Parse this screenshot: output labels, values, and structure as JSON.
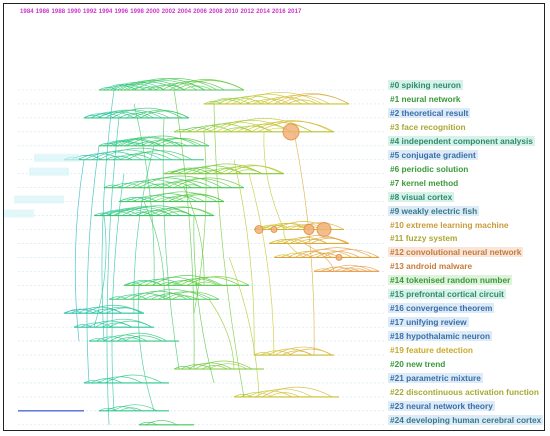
{
  "years": [
    "1984",
    "1986",
    "1988",
    "1990",
    "1992",
    "1994",
    "1996",
    "1998",
    "2000",
    "2002",
    "2004",
    "2006",
    "2008",
    "2010",
    "2012",
    "2014",
    "2016",
    "2017"
  ],
  "clusters": [
    {
      "label": "#0 spiking neuron",
      "color": "#2e8b6a",
      "bg": "#d7f2ea"
    },
    {
      "label": "#1 neural network",
      "color": "#3a9a3a",
      "bg": "#ffffff"
    },
    {
      "label": "#2 theoretical result",
      "color": "#3a6ea8",
      "bg": "#dcebf7"
    },
    {
      "label": "#3 face recognition",
      "color": "#a8a832",
      "bg": "#ffffff"
    },
    {
      "label": "#4 independent component analysis",
      "color": "#2e8b6a",
      "bg": "#d7f2ea"
    },
    {
      "label": "#5 conjugate gradient",
      "color": "#3a6ea8",
      "bg": "#dcebf7"
    },
    {
      "label": "#6 periodic solution",
      "color": "#3a9a3a",
      "bg": "#ffffff"
    },
    {
      "label": "#7 kernel method",
      "color": "#3a9a3a",
      "bg": "#ffffff"
    },
    {
      "label": "#8 visual cortex",
      "color": "#2e8b6a",
      "bg": "#d7f2ea"
    },
    {
      "label": "#9 weakly electric fish",
      "color": "#3a7a8a",
      "bg": "#dcebf7"
    },
    {
      "label": "#10 extreme learning machine",
      "color": "#c89a3a",
      "bg": "#ffffff"
    },
    {
      "label": "#11 fuzzy system",
      "color": "#a8a832",
      "bg": "#ffffff"
    },
    {
      "label": "#12 convolutional neural network",
      "color": "#c87a3a",
      "bg": "#f7e6d9"
    },
    {
      "label": "#13 android malware",
      "color": "#c87a3a",
      "bg": "#ffffff"
    },
    {
      "label": "#14 tokenised random number",
      "color": "#3a9a3a",
      "bg": "#dff2dc"
    },
    {
      "label": "#15 prefrontal cortical circuit",
      "color": "#2e8b6a",
      "bg": "#d7f2ea"
    },
    {
      "label": "#16 convergence theorem",
      "color": "#3a6ea8",
      "bg": "#dcebf7"
    },
    {
      "label": "#17 unifying review",
      "color": "#3a6ea8",
      "bg": "#dcebf7"
    },
    {
      "label": "#18 hypothalamic neuron",
      "color": "#3a6ea8",
      "bg": "#dcebf7"
    },
    {
      "label": "#19 feature detection",
      "color": "#c8aa2a",
      "bg": "#ffffff"
    },
    {
      "label": "#20 new trend",
      "color": "#3a9a3a",
      "bg": "#ffffff"
    },
    {
      "label": "#21 parametric mixture",
      "color": "#3a6ea8",
      "bg": "#dcebf7"
    },
    {
      "label": "#22 discontinuous activation function",
      "color": "#a8a832",
      "bg": "#ffffff"
    },
    {
      "label": "#23 neural network theory",
      "color": "#3a6ea8",
      "bg": "#dcebf7"
    },
    {
      "label": "#24 developing human cerebral cortex",
      "color": "#3a7a8a",
      "bg": "#dcebf7"
    }
  ],
  "colors": {
    "year_label": "#cc33cc",
    "row_line": "#cfe6ef",
    "frame": "#222222"
  }
}
